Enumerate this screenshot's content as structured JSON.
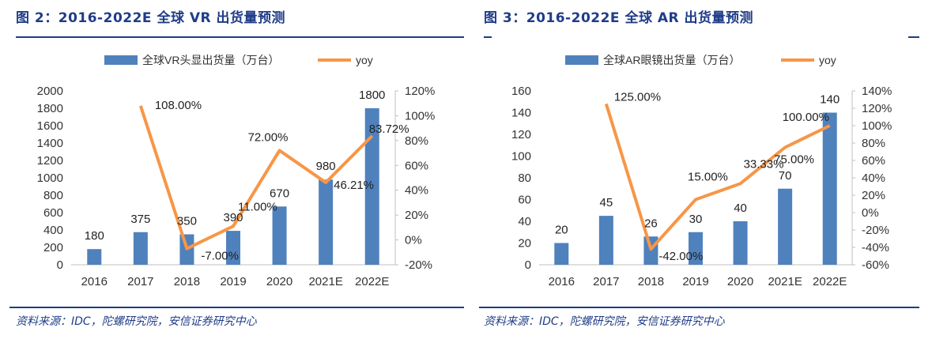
{
  "figures": [
    {
      "title": "图 2：2016-2022E 全球 VR 出货量预测",
      "source": "资料来源：IDC，陀螺研究院，安信证券研究中心"
    },
    {
      "title": "图 3：2016-2022E 全球 AR 出货量预测",
      "source": "资料来源：IDC，陀螺研究院，安信证券研究中心"
    }
  ],
  "colors": {
    "bar": "#4f81bd",
    "line": "#f79646",
    "rule": "#1f3c88"
  },
  "chart_data": [
    {
      "type": "bar",
      "categories": [
        "2016",
        "2017",
        "2018",
        "2019",
        "2020",
        "2021E",
        "2022E"
      ],
      "series": [
        {
          "name": "全球VR头显出货量（万台）",
          "type": "bar",
          "axis": "left",
          "values": [
            180,
            375,
            350,
            390,
            670,
            980,
            1800
          ],
          "labels": [
            "180",
            "375",
            "350",
            "390",
            "670",
            "980",
            "1800"
          ]
        },
        {
          "name": "yoy",
          "type": "line",
          "axis": "right",
          "values": [
            null,
            108.0,
            -7.0,
            11.0,
            72.0,
            46.21,
            83.72
          ],
          "labels": [
            "",
            "108.00%",
            "-7.00%",
            "11.00%",
            "72.00%",
            "46.21%",
            "83.72%"
          ]
        }
      ],
      "y_left": {
        "min": 0,
        "max": 2000,
        "step": 200,
        "ticks": [
          "0",
          "200",
          "400",
          "600",
          "800",
          "1000",
          "1200",
          "1400",
          "1600",
          "1800",
          "2000"
        ]
      },
      "y_right": {
        "min": -20,
        "max": 120,
        "step": 20,
        "ticks": [
          "-20%",
          "0%",
          "20%",
          "40%",
          "60%",
          "80%",
          "100%",
          "120%"
        ]
      },
      "legend": "top",
      "grid": false
    },
    {
      "type": "bar",
      "categories": [
        "2016",
        "2017",
        "2018",
        "2019",
        "2020",
        "2021E",
        "2022E"
      ],
      "series": [
        {
          "name": "全球AR眼镜出货量（万台）",
          "type": "bar",
          "axis": "left",
          "values": [
            20,
            45,
            26,
            30,
            40,
            70,
            140
          ],
          "labels": [
            "20",
            "45",
            "26",
            "30",
            "40",
            "70",
            "140"
          ]
        },
        {
          "name": "yoy",
          "type": "line",
          "axis": "right",
          "values": [
            null,
            125.0,
            -42.0,
            15.0,
            33.33,
            75.0,
            100.0
          ],
          "labels": [
            "",
            "125.00%",
            "-42.00%",
            "15.00%",
            "33.33%",
            "75.00%",
            "100.00%"
          ]
        }
      ],
      "y_left": {
        "min": 0,
        "max": 160,
        "step": 20,
        "ticks": [
          "0",
          "20",
          "40",
          "60",
          "80",
          "100",
          "120",
          "140",
          "160"
        ]
      },
      "y_right": {
        "min": -60,
        "max": 140,
        "step": 20,
        "ticks": [
          "-60%",
          "-40%",
          "-20%",
          "0%",
          "20%",
          "40%",
          "60%",
          "80%",
          "100%",
          "120%",
          "140%"
        ]
      },
      "legend": "top",
      "grid": false
    }
  ]
}
